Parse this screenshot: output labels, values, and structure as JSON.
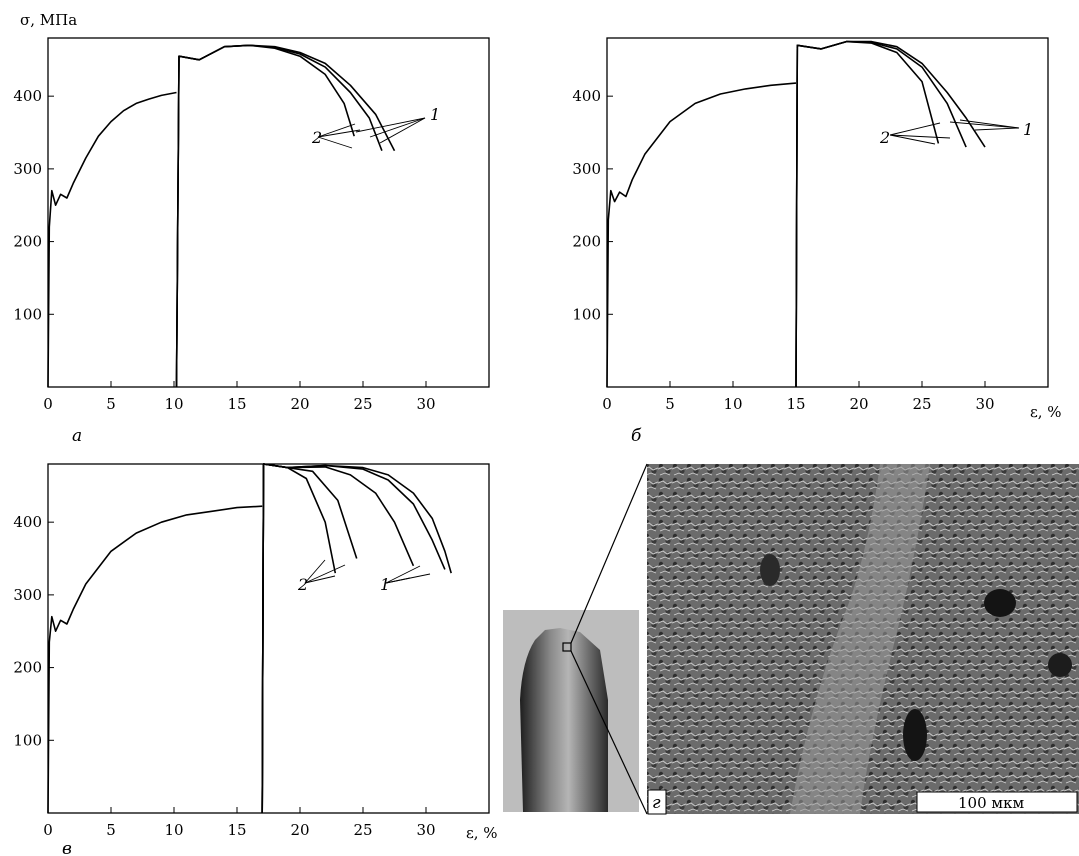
{
  "figure": {
    "y_axis_label": "σ, МПа",
    "x_axis_label": "ε, %",
    "photo_label": "г",
    "scale_bar_label": "100 мкм",
    "colors": {
      "ink": "#000000",
      "photo_light": "#c8c8c8",
      "photo_dark": "#3a3a3a",
      "specimen_bg": "#bdbdbd"
    }
  },
  "chart_data": [
    {
      "type": "line",
      "panel_label": "а",
      "xlim": [
        0,
        35
      ],
      "ylim": [
        0,
        480
      ],
      "xticks": [
        0,
        5,
        10,
        15,
        20,
        25,
        30
      ],
      "yticks": [
        100,
        200,
        300,
        400
      ],
      "curve_labels": [
        "1",
        "2"
      ],
      "series": [
        {
          "stage": "pre",
          "x": [
            0,
            0.1,
            0.3,
            0.6,
            1.0,
            1.5,
            2,
            3,
            4,
            5,
            6,
            7,
            8,
            9,
            10.2
          ],
          "y": [
            0,
            220,
            270,
            250,
            265,
            260,
            280,
            315,
            345,
            365,
            380,
            390,
            396,
            401,
            405
          ]
        },
        {
          "stage": "main",
          "x": [
            10.2,
            10.4,
            12,
            14,
            16,
            18,
            20,
            22,
            24,
            26,
            27.5
          ],
          "y": [
            0,
            455,
            450,
            468,
            470,
            468,
            460,
            445,
            415,
            375,
            325
          ]
        },
        {
          "stage": "main",
          "x": [
            10.2,
            10.4,
            12,
            14,
            16,
            18,
            20,
            22,
            24,
            25.5,
            26.5
          ],
          "y": [
            0,
            455,
            450,
            468,
            470,
            467,
            458,
            440,
            405,
            370,
            325
          ]
        },
        {
          "stage": "main",
          "x": [
            10.2,
            10.4,
            12,
            14,
            16,
            18,
            20,
            22,
            23.5,
            24.3
          ],
          "y": [
            0,
            455,
            450,
            468,
            470,
            466,
            455,
            430,
            390,
            345
          ]
        }
      ]
    },
    {
      "type": "line",
      "panel_label": "б",
      "xlim": [
        0,
        35
      ],
      "ylim": [
        0,
        480
      ],
      "xticks": [
        0,
        5,
        10,
        15,
        20,
        25,
        30
      ],
      "yticks": [
        100,
        200,
        300,
        400
      ],
      "curve_labels": [
        "1",
        "2"
      ],
      "series": [
        {
          "stage": "pre",
          "x": [
            0,
            0.1,
            0.3,
            0.6,
            1.0,
            1.5,
            2,
            3,
            5,
            7,
            9,
            11,
            13,
            15
          ],
          "y": [
            0,
            230,
            270,
            255,
            268,
            262,
            285,
            320,
            365,
            390,
            403,
            410,
            415,
            418
          ]
        },
        {
          "stage": "main",
          "x": [
            15,
            15.1,
            17,
            19,
            21,
            23,
            25,
            27,
            28.5,
            30
          ],
          "y": [
            0,
            470,
            465,
            475,
            475,
            468,
            445,
            405,
            370,
            330
          ]
        },
        {
          "stage": "main",
          "x": [
            15,
            15.1,
            17,
            19,
            21,
            23,
            25,
            27,
            28.5
          ],
          "y": [
            0,
            470,
            465,
            475,
            474,
            465,
            440,
            390,
            330
          ]
        },
        {
          "stage": "main",
          "x": [
            15,
            15.1,
            17,
            19,
            21,
            23,
            25,
            26.3
          ],
          "y": [
            0,
            470,
            465,
            475,
            473,
            460,
            420,
            335
          ]
        }
      ]
    },
    {
      "type": "line",
      "panel_label": "в",
      "xlim": [
        0,
        35
      ],
      "ylim": [
        0,
        480
      ],
      "xticks": [
        0,
        5,
        10,
        15,
        20,
        25,
        30
      ],
      "yticks": [
        100,
        200,
        300,
        400
      ],
      "curve_labels": [
        "1",
        "2"
      ],
      "series": [
        {
          "stage": "pre",
          "x": [
            0,
            0.1,
            0.3,
            0.6,
            1.0,
            1.5,
            2,
            3,
            5,
            7,
            9,
            11,
            13,
            15,
            17
          ],
          "y": [
            0,
            235,
            270,
            250,
            265,
            260,
            280,
            315,
            360,
            385,
            400,
            410,
            415,
            420,
            422
          ]
        },
        {
          "stage": "main",
          "x": [
            17,
            17.1,
            19,
            22,
            25,
            27,
            29,
            30.5,
            31.5,
            32
          ],
          "y": [
            0,
            480,
            475,
            478,
            475,
            465,
            440,
            405,
            360,
            330
          ]
        },
        {
          "stage": "main",
          "x": [
            17,
            17.1,
            19,
            22,
            25,
            27,
            29,
            30.5,
            31.5
          ],
          "y": [
            0,
            480,
            475,
            478,
            473,
            458,
            425,
            375,
            335
          ]
        },
        {
          "stage": "main",
          "x": [
            17,
            17.1,
            19,
            22,
            24,
            26,
            27.5,
            29
          ],
          "y": [
            0,
            480,
            475,
            476,
            465,
            440,
            400,
            340
          ]
        },
        {
          "stage": "main",
          "x": [
            17,
            17.1,
            19,
            21,
            23,
            24.5
          ],
          "y": [
            0,
            480,
            475,
            470,
            430,
            350
          ]
        },
        {
          "stage": "main",
          "x": [
            17,
            17.1,
            19,
            20.5,
            22,
            22.8
          ],
          "y": [
            0,
            480,
            475,
            460,
            400,
            330
          ]
        }
      ]
    }
  ]
}
